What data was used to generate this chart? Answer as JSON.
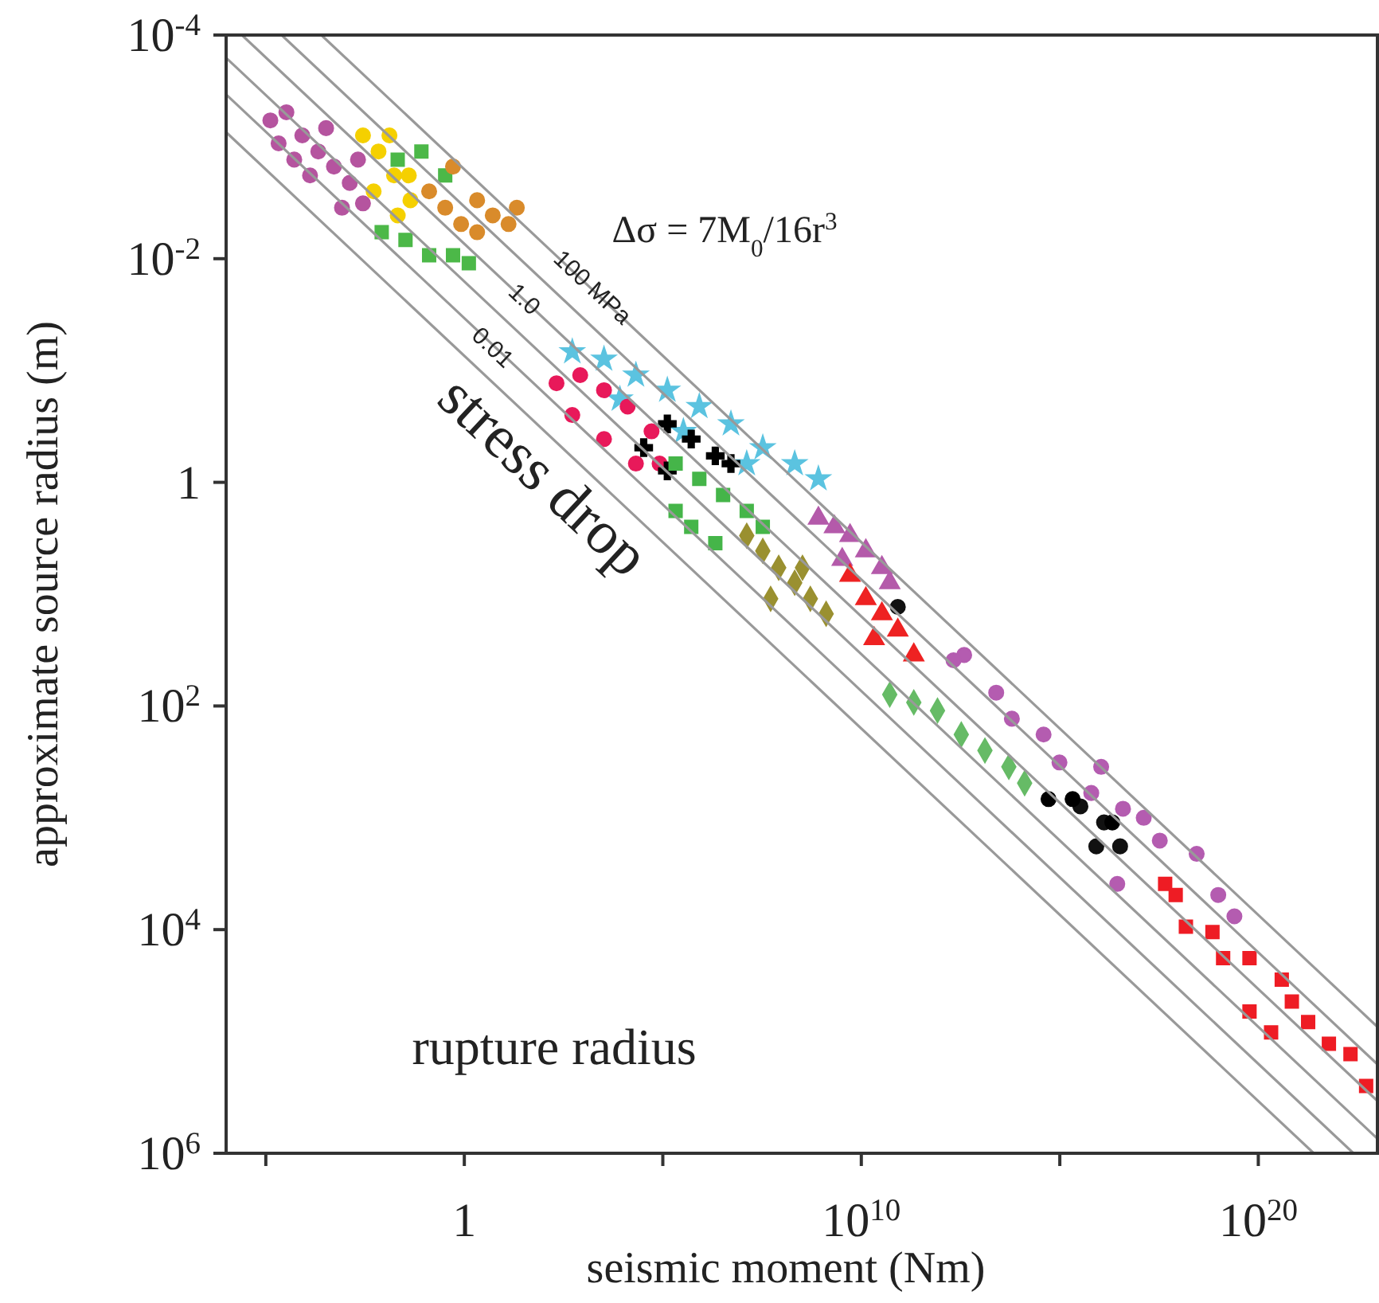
{
  "chart_data": {
    "type": "scatter",
    "xlabel": "seismic moment (Nm)",
    "ylabel": "approximate source radius (m)",
    "log": "xy",
    "xlim": [
      1e-06,
      1e+23
    ],
    "ylim": [
      1000000.0,
      0.0001
    ],
    "xticks": [
      {
        "value": 1e-05,
        "label": null
      },
      1,
      {
        "value": 100000.0,
        "label": null
      },
      {
        "value": 10000000000.0,
        "label": "10$^{10}$"
      },
      {
        "value": 1000000000000000.0,
        "label": null
      },
      {
        "value": 1e+20,
        "label": "10$^{20}$"
      }
    ],
    "yticks": [
      {
        "value": 0.0001,
        "label": "10$^{-4}$"
      },
      {
        "value": 0.01,
        "label": "10$^{-2}$"
      },
      1,
      {
        "value": 100,
        "label": "10$^{2}$"
      },
      {
        "value": 10000.0,
        "label": "10$^{4}$"
      },
      {
        "value": 1000000.0,
        "label": "10$^{6}$"
      }
    ],
    "annotations": [
      {
        "text": "100 MPa",
        "x": 1700,
        "y": 0.018
      },
      {
        "text": "1.0",
        "x": 33,
        "y": 0.023
      },
      {
        "text": "0.01",
        "x": 5.2,
        "y": 0.062
      },
      "Δσ = 7M$_{0}$/16r$^{3}$",
      "stress drop",
      "rupture radius"
    ],
    "series": [
      {
        "type": "scatter",
        "color": "#b5549f",
        "marker": "circle",
        "x": [
          1.3e-05,
          3.3e-05,
          8.3e-05,
          0.00021,
          0.00052,
          0.0013,
          0.0028,
          2.1e-05,
          0.00013,
          0.00083,
          5.2e-05,
          0.00033,
          0.0021
        ],
        "values": [
          0.00058,
          0.00049,
          0.00079,
          0.0011,
          0.0015,
          0.0021,
          0.0032,
          0.00093,
          0.0018,
          0.0035,
          0.0013,
          0.00068,
          0.0013
        ]
      },
      {
        "type": "scatter",
        "color": "#f5d000",
        "marker": "circle",
        "x": [
          0.0028,
          0.0069,
          0.017,
          0.044,
          0.0052,
          0.021,
          0.04,
          0.013
        ],
        "values": [
          0.00079,
          0.0011,
          0.0018,
          0.003,
          0.0025,
          0.0041,
          0.0018,
          0.00079
        ]
      },
      {
        "type": "scatter",
        "color": "#4cb848",
        "marker": "square",
        "x": [
          0.0083,
          0.033,
          0.13,
          0.52,
          1.3,
          0.083,
          0.33,
          0.021
        ],
        "values": [
          0.0058,
          0.0068,
          0.0093,
          0.0093,
          0.011,
          0.0011,
          0.0018,
          0.0013
        ]
      },
      {
        "type": "scatter",
        "color": "#d98b2b",
        "marker": "circle",
        "x": [
          0.13,
          0.33,
          0.83,
          2.1,
          5.2,
          13,
          21,
          0.52,
          2.1
        ],
        "values": [
          0.0025,
          0.0035,
          0.0049,
          0.0058,
          0.0041,
          0.0049,
          0.0035,
          0.0015,
          0.003
        ]
      },
      {
        "type": "scatter",
        "color": "#5bc3e0",
        "marker": "star",
        "x": [
          525,
          3300,
          21000.0,
          130000.0,
          830000.0,
          5200000.0,
          33000000.0,
          210000000.0,
          830000000.0,
          8300,
          330000.0,
          13000000.0
        ],
        "values": [
          0.068,
          0.079,
          0.11,
          0.15,
          0.21,
          0.3,
          0.49,
          0.68,
          0.93,
          0.18,
          0.35,
          0.68
        ]
      },
      {
        "type": "scatter",
        "color": "#e8195a",
        "marker": "circle",
        "x": [
          210,
          830,
          3300,
          13000.0,
          52000.0,
          525,
          3300,
          21000.0,
          83000.0
        ],
        "values": [
          0.13,
          0.11,
          0.15,
          0.21,
          0.35,
          0.25,
          0.41,
          0.68,
          0.68
        ]
      },
      {
        "type": "scatter",
        "color": "#000000",
        "marker": "cross",
        "x": [
          33000.0,
          130000.0,
          520000.0,
          2100000.0,
          5200000.0,
          130000.0
        ],
        "values": [
          0.49,
          0.3,
          0.41,
          0.58,
          0.68,
          0.79
        ]
      },
      {
        "type": "scatter",
        "color": "#45b549",
        "marker": "square",
        "x": [
          210000.0,
          830000.0,
          3300000.0,
          13000000.0,
          33000000.0,
          520000.0,
          2100000.0,
          210000.0
        ],
        "values": [
          0.68,
          0.93,
          1.3,
          1.8,
          2.5,
          2.5,
          3.5,
          1.8
        ]
      },
      {
        "type": "scatter",
        "color": "#9a9030",
        "marker": "diamond",
        "x": [
          13000000.0,
          33000000.0,
          83000000.0,
          210000000.0,
          520000000.0,
          1300000000.0,
          52000000.0,
          330000000.0
        ],
        "values": [
          3,
          4.1,
          5.8,
          7.9,
          11,
          15,
          11,
          5.8
        ]
      },
      {
        "type": "scatter",
        "color": "#b45aaa",
        "marker": "triangle",
        "x": [
          830000000.0,
          2100000000.0,
          5200000000.0,
          13000000000.0,
          33000000000.0,
          52000000000.0,
          3300000000.0
        ],
        "values": [
          2.1,
          2.5,
          3,
          4.1,
          5.8,
          7.9,
          4.9
        ]
      },
      {
        "type": "scatter",
        "color": "#ee2222",
        "marker": "triangle",
        "x": [
          5200000000.0,
          13000000000.0,
          33000000000.0,
          83000000000.0,
          210000000000.0,
          21000000000.0
        ],
        "values": [
          6.8,
          11,
          15,
          21,
          35,
          25
        ]
      },
      {
        "type": "scatter",
        "color": "#111111",
        "marker": "circle",
        "x": [
          83000000000.0,
          3300000000000000.0,
          1.3e+16,
          3.3e+16,
          8300000000000000.0
        ],
        "values": [
          13,
          790,
          1100,
          1800,
          1800
        ]
      },
      {
        "type": "scatter",
        "color": "#66bb66",
        "marker": "diamond",
        "x": [
          52000000000.0,
          210000000000.0,
          830000000000.0,
          3300000000000.0,
          13000000000000.0,
          52000000000000.0,
          130000000000000.0
        ],
        "values": [
          79,
          93,
          110,
          180,
          250,
          350,
          490
        ]
      },
      {
        "type": "scatter",
        "color": "#b45cb0",
        "marker": "circle",
        "x": [
          3900000000000.0,
          25000000000000.0,
          62000000000000.0,
          390000000000000.0,
          980000000000000.0,
          1.1e+16,
          6200000000000000.0,
          3.9e+16,
          1.3e+17,
          3.3e+17,
          2.8e+18,
          9.8e+18,
          2.5e+19,
          2.8e+16,
          2100000000000.0
        ],
        "values": [
          35,
          76,
          130,
          180,
          320,
          350,
          600,
          830,
          1000,
          1600,
          2100,
          4900,
          7600,
          3900,
          39
        ]
      },
      {
        "type": "scatter",
        "color": "#000000",
        "marker": "circle",
        "x": [
          520000000000000.0,
          2100000000000000.0,
          2.1e+16
        ],
        "values": [
          680,
          680,
          1100
        ]
      },
      {
        "type": "scatter",
        "color": "#ee1c24",
        "marker": "square",
        "x": [
          4.5e+17,
          1.5e+18,
          7e+18,
          1.3e+19,
          6e+19,
          6e+19,
          3.9e+20,
          7e+20,
          1.8e+21,
          6e+21,
          2.1e+22,
          5.2e+22,
          8.3e+17,
          2.1e+20
        ],
        "values": [
          3900,
          9400,
          10500,
          18000,
          18000,
          54000,
          28000,
          44000,
          67000,
          105000,
          130000,
          250000,
          4900,
          83000
        ]
      },
      {
        "type": "line",
        "color": "#999999",
        "marker": "none",
        "x": [
          1e-06,
          2.5e+21
        ],
        "values": [
          0.00074,
          1000000.0
        ]
      },
      {
        "type": "line",
        "color": "#999999",
        "marker": "none",
        "x": [
          1e-06,
          2.5e+22
        ],
        "values": [
          0.00034,
          1000000.0
        ]
      },
      {
        "type": "line",
        "color": "#999999",
        "marker": "none",
        "x": [
          1e-06,
          1e+23
        ],
        "values": [
          0.00016,
          740000.0
        ]
      },
      {
        "type": "line",
        "color": "#999999",
        "marker": "none",
        "x": [
          2.5e-06,
          1e+23
        ],
        "values": [
          0.0001,
          340000.0
        ]
      },
      {
        "type": "line",
        "color": "#999999",
        "marker": "none",
        "x": [
          2.5e-05,
          1e+23
        ],
        "values": [
          0.0001,
          160000.0
        ]
      },
      {
        "type": "line",
        "color": "#999999",
        "marker": "none",
        "x": [
          0.00025,
          1e+23
        ],
        "values": [
          0.0001,
          74000.0
        ]
      }
    ]
  }
}
